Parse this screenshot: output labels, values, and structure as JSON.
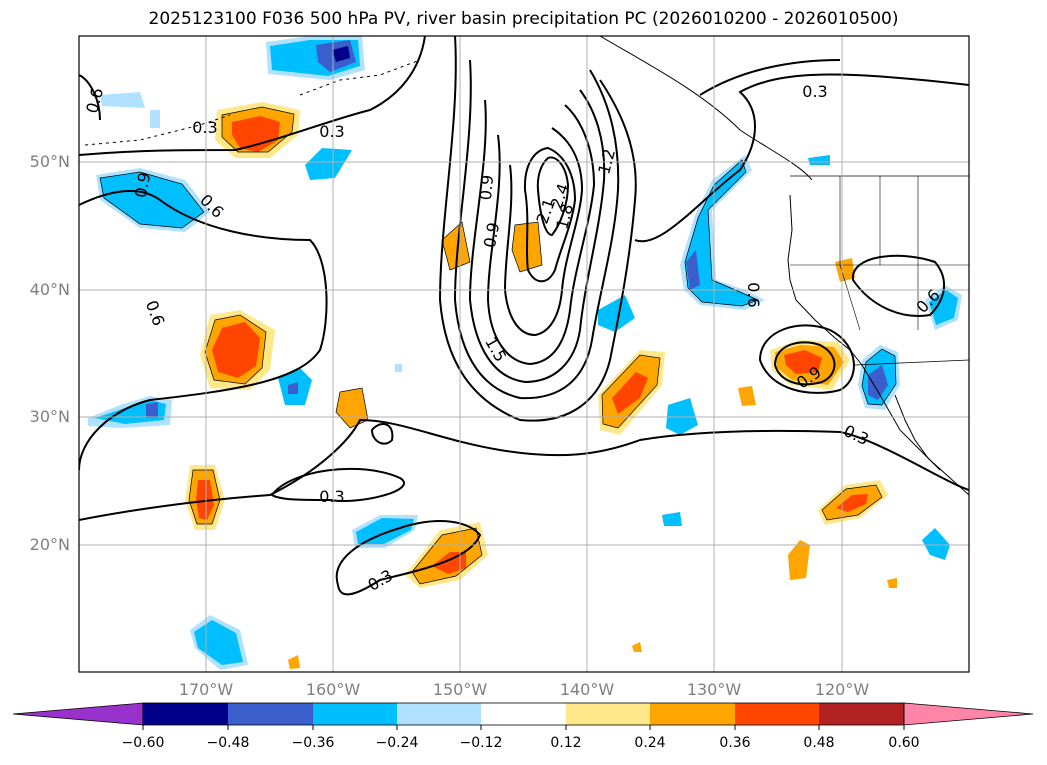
{
  "title": "2025123100 F036 500 hPa PV, river basin precipitation PC (2026010200 - 2026010500)",
  "axes": {
    "lat_labels": [
      "50°N",
      "40°N",
      "30°N",
      "20°N"
    ],
    "lon_labels": [
      "170°W",
      "160°W",
      "150°W",
      "140°W",
      "130°W",
      "120°W"
    ]
  },
  "contour_labels": [
    "0.3",
    "0.3",
    "0.6",
    "0.6",
    "0.6",
    "0.9",
    "0.9",
    "1.2",
    "1.5",
    "1.8",
    "2.1",
    "2.4",
    "0.3",
    "0.3",
    "0.3",
    "0.3",
    "0.6",
    "0.9",
    "0.6",
    "0.9"
  ],
  "colorbar": {
    "ticks": [
      "−0.60",
      "−0.48",
      "−0.36",
      "−0.24",
      "−0.12",
      "0.12",
      "0.24",
      "0.36",
      "0.48",
      "0.60"
    ],
    "colors": [
      "#9932cc",
      "#00008b",
      "#3a5fcd",
      "#00bfff",
      "#b0e2ff",
      "#ffffff",
      "#ffe88a",
      "#ffa500",
      "#ff4500",
      "#b22222",
      "#ff85a8"
    ]
  },
  "palette": {
    "grid": "#b0b0b0",
    "contour": "#000000",
    "label_gray": "#808080"
  }
}
